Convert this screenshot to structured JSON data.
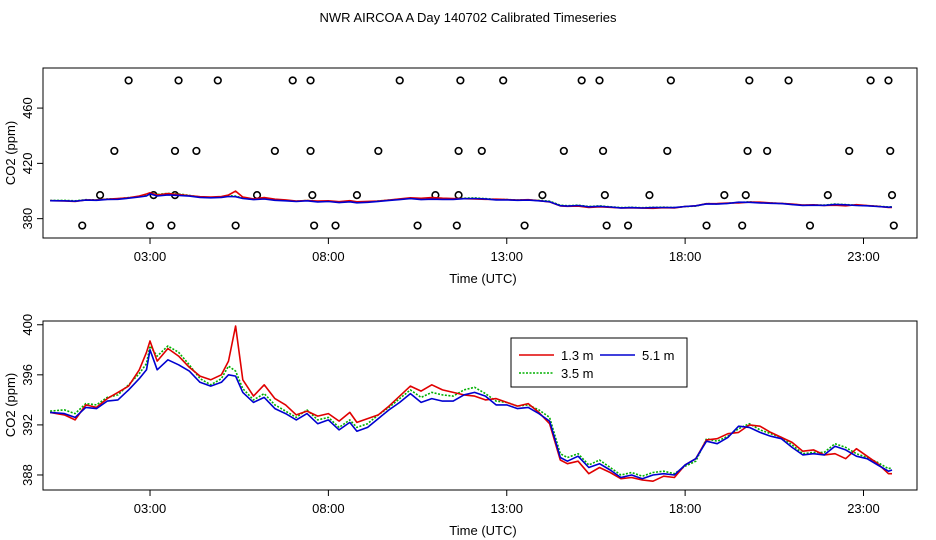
{
  "figure_title": "NWR AIRCOA A  Day 140702  Calibrated Timeseries",
  "chart_data": [
    {
      "type": "scatter",
      "panel": "top",
      "xlabel": "Time (UTC)",
      "ylabel": "CO2 (ppm)",
      "xlim": [
        0,
        24.5
      ],
      "ylim": [
        366,
        489
      ],
      "xticks": [
        {
          "value": 3,
          "label": "03:00"
        },
        {
          "value": 8,
          "label": "08:00"
        },
        {
          "value": 13,
          "label": "13:00"
        },
        {
          "value": 18,
          "label": "18:00"
        },
        {
          "value": 23,
          "label": "23:00"
        }
      ],
      "yticks": [
        {
          "value": 380,
          "label": "380"
        },
        {
          "value": 420,
          "label": "420"
        },
        {
          "value": 460,
          "label": "460"
        }
      ],
      "scatter_points": [
        [
          1.1,
          375
        ],
        [
          1.6,
          397
        ],
        [
          2.0,
          429
        ],
        [
          2.4,
          480
        ],
        [
          3.0,
          375
        ],
        [
          3.1,
          397
        ],
        [
          3.6,
          375
        ],
        [
          3.7,
          397
        ],
        [
          3.7,
          429
        ],
        [
          3.8,
          480
        ],
        [
          4.3,
          429
        ],
        [
          4.9,
          480
        ],
        [
          5.4,
          375
        ],
        [
          6.0,
          397
        ],
        [
          6.5,
          429
        ],
        [
          7.0,
          480
        ],
        [
          7.5,
          480
        ],
        [
          7.5,
          429
        ],
        [
          7.55,
          397
        ],
        [
          7.6,
          375
        ],
        [
          8.2,
          375
        ],
        [
          8.8,
          397
        ],
        [
          9.4,
          429
        ],
        [
          10.0,
          480
        ],
        [
          10.5,
          375
        ],
        [
          11.0,
          397
        ],
        [
          11.6,
          375
        ],
        [
          11.65,
          397
        ],
        [
          11.65,
          429
        ],
        [
          11.7,
          480
        ],
        [
          12.3,
          429
        ],
        [
          12.9,
          480
        ],
        [
          13.5,
          375
        ],
        [
          14.0,
          397
        ],
        [
          14.6,
          429
        ],
        [
          15.1,
          480
        ],
        [
          15.6,
          480
        ],
        [
          15.7,
          429
        ],
        [
          15.75,
          397
        ],
        [
          15.8,
          375
        ],
        [
          16.4,
          375
        ],
        [
          17.0,
          397
        ],
        [
          17.5,
          429
        ],
        [
          17.6,
          480
        ],
        [
          18.6,
          375
        ],
        [
          19.1,
          397
        ],
        [
          19.6,
          375
        ],
        [
          19.7,
          397
        ],
        [
          19.75,
          429
        ],
        [
          19.8,
          480
        ],
        [
          20.3,
          429
        ],
        [
          20.9,
          480
        ],
        [
          21.5,
          375
        ],
        [
          22.0,
          397
        ],
        [
          22.6,
          429
        ],
        [
          23.2,
          480
        ],
        [
          23.7,
          480
        ],
        [
          23.75,
          429
        ],
        [
          23.8,
          397
        ],
        [
          23.85,
          375
        ]
      ]
    },
    {
      "type": "line",
      "panel": "bottom",
      "xlabel": "Time (UTC)",
      "ylabel": "CO2 (ppm)",
      "xlim": [
        0,
        24.5
      ],
      "ylim": [
        386.8,
        400.3
      ],
      "xticks": [
        {
          "value": 3,
          "label": "03:00"
        },
        {
          "value": 8,
          "label": "08:00"
        },
        {
          "value": 13,
          "label": "13:00"
        },
        {
          "value": 18,
          "label": "18:00"
        },
        {
          "value": 23,
          "label": "23:00"
        }
      ],
      "yticks": [
        {
          "value": 388,
          "label": "388"
        },
        {
          "value": 392,
          "label": "392"
        },
        {
          "value": 396,
          "label": "396"
        },
        {
          "value": 400,
          "label": "400"
        }
      ],
      "legend": {
        "position": "top-center",
        "entries": [
          {
            "name": "1.3 m",
            "color": "#e00000",
            "style": "solid"
          },
          {
            "name": "3.5 m",
            "color": "#00b000",
            "style": "dotted"
          },
          {
            "name": "5.1 m",
            "color": "#0000d0",
            "style": "solid"
          }
        ]
      },
      "x": [
        0.2,
        0.6,
        0.9,
        1.2,
        1.5,
        1.8,
        2.1,
        2.4,
        2.7,
        2.9,
        3.0,
        3.2,
        3.5,
        3.8,
        4.1,
        4.4,
        4.7,
        5.0,
        5.2,
        5.4,
        5.6,
        5.9,
        6.2,
        6.5,
        6.8,
        7.1,
        7.4,
        7.7,
        8.0,
        8.3,
        8.6,
        8.8,
        9.1,
        9.4,
        9.7,
        10.0,
        10.3,
        10.6,
        10.9,
        11.2,
        11.5,
        11.8,
        12.1,
        12.4,
        12.7,
        13.0,
        13.3,
        13.6,
        13.9,
        14.2,
        14.5,
        14.7,
        15.0,
        15.3,
        15.6,
        15.9,
        16.2,
        16.5,
        16.8,
        17.1,
        17.4,
        17.7,
        18.0,
        18.3,
        18.6,
        18.9,
        19.2,
        19.5,
        19.8,
        20.1,
        20.4,
        20.7,
        21.0,
        21.3,
        21.6,
        21.9,
        22.2,
        22.5,
        22.8,
        23.1,
        23.4,
        23.7,
        23.8
      ],
      "series": [
        {
          "name": "1.3 m",
          "color": "#e00000",
          "values": [
            393.0,
            392.8,
            392.4,
            393.6,
            393.4,
            394.1,
            394.6,
            395.1,
            396.4,
            397.8,
            398.7,
            397.1,
            398.1,
            397.5,
            396.6,
            395.9,
            395.6,
            396.0,
            397.1,
            399.9,
            395.6,
            394.3,
            395.2,
            394.1,
            393.6,
            392.8,
            393.1,
            392.7,
            392.9,
            392.3,
            393.0,
            392.2,
            392.5,
            392.8,
            393.5,
            394.3,
            395.1,
            394.7,
            395.2,
            394.8,
            394.6,
            394.4,
            394.3,
            394.0,
            394.1,
            393.8,
            393.5,
            393.7,
            393.0,
            392.1,
            389.2,
            388.9,
            389.1,
            388.1,
            388.6,
            388.2,
            387.7,
            387.8,
            387.6,
            387.5,
            387.9,
            387.8,
            388.8,
            389.3,
            390.8,
            390.9,
            391.3,
            391.4,
            392.0,
            391.9,
            391.4,
            391.0,
            390.6,
            389.9,
            390.0,
            389.6,
            389.7,
            389.3,
            390.1,
            389.5,
            388.9,
            388.1,
            388.1
          ]
        },
        {
          "name": "3.5 m",
          "color": "#00b000",
          "values": [
            393.1,
            393.2,
            392.9,
            393.7,
            393.6,
            394.2,
            394.4,
            395.2,
            396.1,
            396.9,
            398.3,
            397.5,
            398.3,
            397.8,
            396.8,
            395.7,
            395.2,
            395.7,
            396.7,
            396.3,
            394.9,
            394.0,
            394.5,
            393.6,
            393.1,
            392.6,
            393.2,
            392.4,
            392.6,
            391.8,
            392.4,
            391.8,
            392.1,
            392.8,
            393.4,
            394.1,
            394.8,
            394.2,
            394.6,
            394.4,
            394.3,
            394.8,
            395.0,
            394.5,
            393.9,
            393.8,
            393.5,
            393.6,
            393.2,
            392.6,
            389.7,
            389.4,
            389.7,
            388.8,
            389.2,
            388.6,
            388.0,
            388.2,
            387.9,
            388.2,
            388.3,
            388.1,
            388.7,
            389.1,
            390.9,
            390.7,
            391.1,
            391.7,
            392.1,
            391.6,
            391.3,
            391.0,
            390.4,
            389.7,
            389.8,
            389.8,
            390.5,
            390.2,
            389.7,
            389.4,
            389.0,
            388.5,
            388.6
          ]
        },
        {
          "name": "5.1 m",
          "color": "#0000d0",
          "values": [
            393.0,
            392.9,
            392.6,
            393.4,
            393.3,
            393.9,
            394.0,
            394.8,
            395.7,
            396.4,
            398.0,
            396.4,
            397.2,
            396.8,
            396.3,
            395.4,
            395.1,
            395.4,
            396.0,
            395.9,
            394.6,
            393.8,
            394.2,
            393.3,
            392.9,
            392.4,
            392.9,
            392.1,
            392.4,
            391.6,
            392.2,
            391.5,
            391.8,
            392.5,
            393.2,
            393.8,
            394.5,
            393.8,
            394.1,
            393.9,
            393.9,
            394.4,
            394.6,
            394.3,
            393.6,
            393.6,
            393.3,
            393.4,
            392.9,
            392.3,
            389.4,
            389.1,
            389.5,
            388.6,
            388.9,
            388.4,
            387.8,
            388.0,
            387.7,
            388.0,
            388.1,
            388.0,
            388.8,
            389.3,
            390.7,
            390.5,
            391.0,
            391.9,
            391.8,
            391.4,
            391.1,
            390.9,
            390.2,
            389.6,
            389.7,
            389.6,
            390.3,
            390.0,
            389.5,
            389.3,
            388.8,
            388.3,
            388.4
          ]
        }
      ]
    }
  ]
}
